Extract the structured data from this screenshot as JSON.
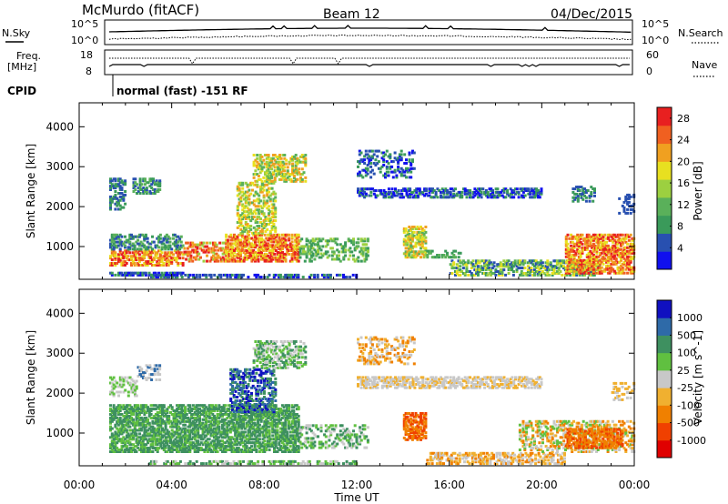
{
  "header": {
    "station": "McMurdo (fitACF)",
    "beam": "Beam 12",
    "date": "04/Dec/2015"
  },
  "status_panel": {
    "nsky_label": "N.Sky",
    "nsearch_label": "N.Search",
    "noise_tick_top": "10^5",
    "noise_tick_bottom": "10^0",
    "freq_label_line1": "Freq.",
    "freq_label_line2": "[MHz]",
    "freq_ticks": [
      "18",
      "8"
    ],
    "nave_label": "Nave",
    "nave_ticks": [
      "60",
      "0"
    ],
    "cpid_label": "CPID",
    "cpid_text": "normal (fast) -151 RF"
  },
  "colors": {
    "power": [
      "#1010ee",
      "#2850b0",
      "#3a9a5a",
      "#5ab05a",
      "#9cd040",
      "#e8e020",
      "#f0a020",
      "#f06020",
      "#e82020"
    ],
    "velocity": [
      "#e00000",
      "#f04000",
      "#f08000",
      "#f0b030",
      "#c8c8c8",
      "#60c040",
      "#3e9060",
      "#2e6aa8",
      "#1010c0"
    ]
  },
  "chart_data": [
    {
      "type": "heatmap",
      "title": "",
      "xlabel": "Time UT",
      "ylabel": "Slant Range [km]",
      "x_ticks": [
        "00:00",
        "04:00",
        "08:00",
        "12:00",
        "16:00",
        "20:00",
        "00:00"
      ],
      "y_ticks": [
        "1000",
        "2000",
        "3000",
        "4000"
      ],
      "xlim_hours": [
        0,
        24
      ],
      "ylim_km": [
        180,
        4600
      ],
      "colorbar": {
        "label": "Power [dB]",
        "ticks": [
          "4",
          "8",
          "12",
          "16",
          "20",
          "24",
          "28"
        ],
        "range": [
          0,
          30
        ]
      },
      "observed_regions": [
        {
          "t": [
            1.3,
            4.5
          ],
          "r": [
            500,
            1300
          ],
          "level": "16-28 dB"
        },
        {
          "t": [
            6.3,
            9.5
          ],
          "r": [
            600,
            1800
          ],
          "level": "16-30 dB"
        },
        {
          "t": [
            7.5,
            9.8
          ],
          "r": [
            2600,
            3300
          ],
          "level": "16-24 dB"
        },
        {
          "t": [
            12.0,
            14.5
          ],
          "r": [
            2700,
            3400
          ],
          "level": "4-12 dB"
        },
        {
          "t": [
            12.0,
            20.0
          ],
          "r": [
            2200,
            2450
          ],
          "level": "4-12 dB"
        },
        {
          "t": [
            14.0,
            15.0
          ],
          "r": [
            700,
            1500
          ],
          "level": "12-24 dB"
        },
        {
          "t": [
            16.0,
            22.5
          ],
          "r": [
            250,
            700
          ],
          "level": "8-28 dB"
        },
        {
          "t": [
            21.0,
            24.0
          ],
          "r": [
            300,
            1300
          ],
          "level": "16-30 dB"
        }
      ]
    },
    {
      "type": "heatmap",
      "title": "",
      "xlabel": "Time UT",
      "ylabel": "Slant Range [km]",
      "x_ticks": [
        "00:00",
        "04:00",
        "08:00",
        "12:00",
        "16:00",
        "20:00",
        "00:00"
      ],
      "y_ticks": [
        "1000",
        "2000",
        "3000",
        "4000"
      ],
      "xlim_hours": [
        0,
        24
      ],
      "ylim_km": [
        180,
        4600
      ],
      "colorbar": {
        "label": "Velocity [m s^-1]",
        "ticks": [
          "-1000",
          "-500",
          "-100",
          "-25",
          "25",
          "100",
          "500",
          "1000"
        ]
      },
      "observed_regions": [
        {
          "t": [
            1.3,
            9.5
          ],
          "r": [
            500,
            1700
          ],
          "level": "100-500 m/s"
        },
        {
          "t": [
            6.5,
            8.5
          ],
          "r": [
            1500,
            2600
          ],
          "level": "500-1000 m/s"
        },
        {
          "t": [
            12.0,
            20.0
          ],
          "r": [
            2100,
            2400
          ],
          "level": "-25 to 25 m/s"
        },
        {
          "t": [
            14.0,
            15.0
          ],
          "r": [
            800,
            1500
          ],
          "level": "-500 to -100 m/s"
        },
        {
          "t": [
            15.0,
            21.0
          ],
          "r": [
            200,
            500
          ],
          "level": "-100 to -25 m/s"
        },
        {
          "t": [
            21.0,
            23.5
          ],
          "r": [
            600,
            1100
          ],
          "level": "-500 to -100 m/s"
        }
      ]
    }
  ]
}
